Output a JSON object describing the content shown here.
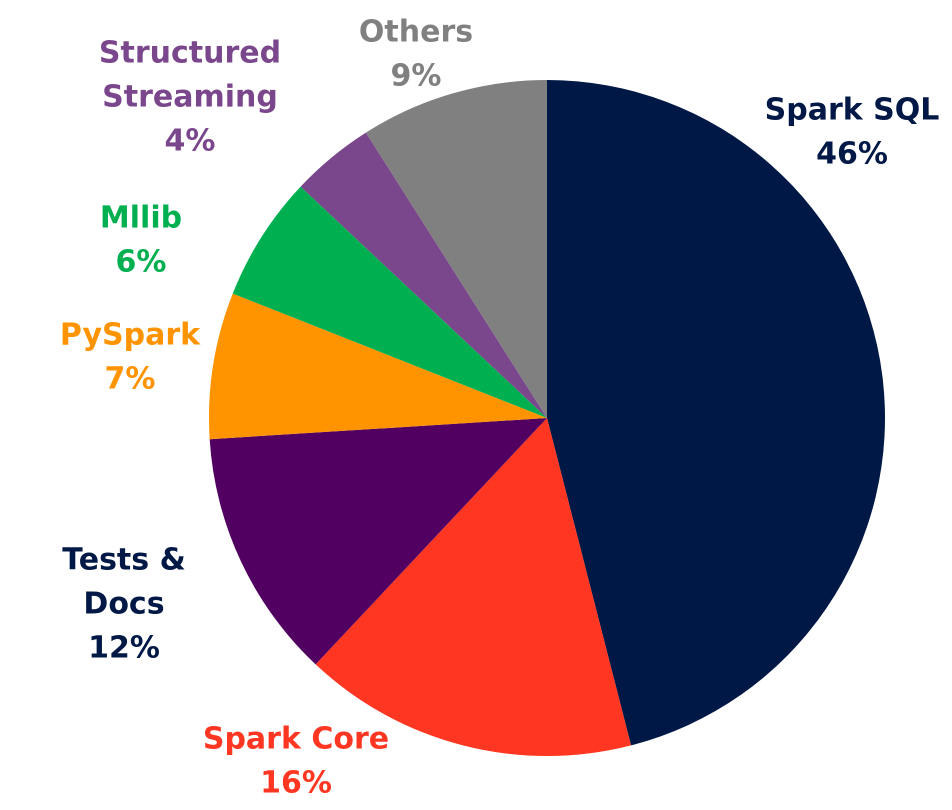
{
  "chart_data": {
    "type": "pie",
    "title": "",
    "start_angle_deg": 0,
    "direction": "clockwise",
    "slices": [
      {
        "label_lines": [
          "Spark SQL"
        ],
        "value": 46,
        "value_label": "46%",
        "color": "#001845"
      },
      {
        "label_lines": [
          "Spark Core"
        ],
        "value": 16,
        "value_label": "16%",
        "color": "#ff3621"
      },
      {
        "label_lines": [
          "Tests &",
          "Docs"
        ],
        "value": 12,
        "value_label": "12%",
        "color": "#510062"
      },
      {
        "label_lines": [
          "PySpark"
        ],
        "value": 7,
        "value_label": "7%",
        "color": "#ff9400"
      },
      {
        "label_lines": [
          "Mllib"
        ],
        "value": 6,
        "value_label": "6%",
        "color": "#00b050"
      },
      {
        "label_lines": [
          "Structured",
          "Streaming"
        ],
        "value": 4,
        "value_label": "4%",
        "color": "#7a468c"
      },
      {
        "label_lines": [
          "Others"
        ],
        "value": 9,
        "value_label": "9%",
        "color": "#808080"
      }
    ],
    "label_colors": [
      "#001845",
      "#ff3621",
      "#001845",
      "#ff9400",
      "#00b050",
      "#7a468c",
      "#808080"
    ]
  }
}
